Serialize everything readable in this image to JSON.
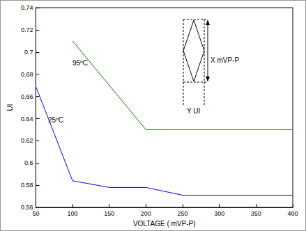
{
  "chart_data": {
    "type": "line",
    "x_label": "VOLTAGE ( mVP-P)",
    "y_label": "UI",
    "xlim": [
      50,
      400
    ],
    "xticks": [
      50,
      100,
      150,
      200,
      250,
      300,
      350,
      400
    ],
    "ylim": [
      0.56,
      0.74
    ],
    "yticks": [
      0.56,
      0.58,
      0.6,
      0.62,
      0.64,
      0.66,
      0.68,
      0.7,
      0.72,
      0.74
    ],
    "grid": false,
    "series": [
      {
        "name": "95ºC",
        "color": "#008000",
        "x": [
          100,
          200,
          400
        ],
        "values": [
          0.71,
          0.63,
          0.63
        ]
      },
      {
        "name": "25ºC",
        "color": "#0000ff",
        "x": [
          50,
          100,
          150,
          200,
          250,
          400
        ],
        "values": [
          0.669,
          0.584,
          0.578,
          0.578,
          0.571,
          0.571
        ]
      }
    ],
    "annotations": [
      "X mVP-P",
      "Y UI"
    ]
  }
}
